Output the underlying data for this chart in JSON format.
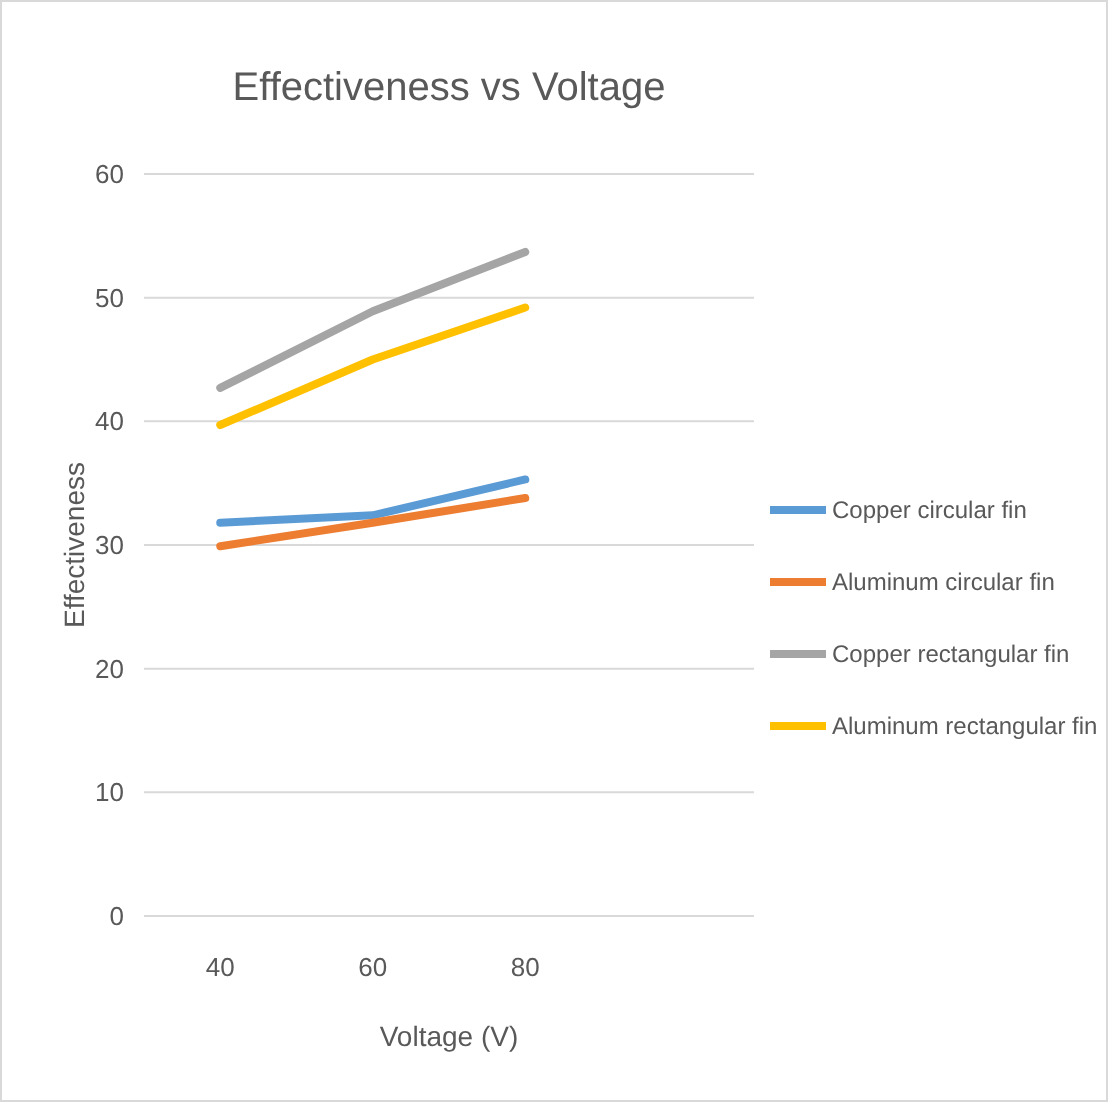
{
  "chart_data": {
    "type": "line",
    "title": "Effectiveness vs Voltage",
    "xlabel": "Voltage (V)",
    "ylabel": "Effectiveness",
    "categories": [
      "40",
      "60",
      "80",
      null
    ],
    "series": [
      {
        "name": "Copper circular fin",
        "color": "#5b9bd5",
        "values": [
          31.8,
          32.4,
          35.3,
          null
        ]
      },
      {
        "name": "Aluminum circular fin",
        "color": "#ed7d31",
        "values": [
          29.9,
          31.8,
          33.8,
          null
        ]
      },
      {
        "name": "Copper rectangular fin",
        "color": "#a5a5a5",
        "values": [
          42.7,
          48.9,
          53.7,
          null
        ]
      },
      {
        "name": "Aluminum rectangular fin",
        "color": "#ffc000",
        "values": [
          39.7,
          45.0,
          49.2,
          null
        ]
      }
    ],
    "ylim": [
      0,
      60
    ],
    "yticks": [
      0,
      10,
      20,
      30,
      40,
      50,
      60
    ],
    "grid": "y",
    "legend": "right",
    "marker": "none",
    "line_style": "solid"
  }
}
